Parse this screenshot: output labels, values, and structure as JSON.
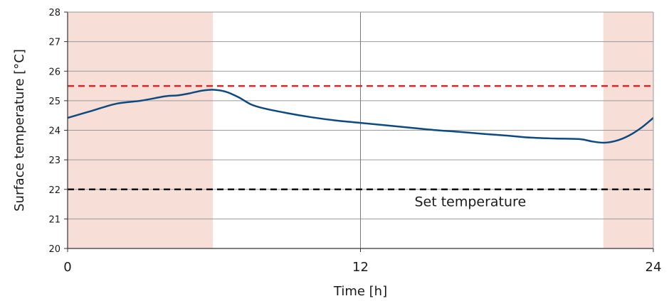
{
  "chart_data": {
    "type": "line",
    "xlabel": "Time [h]",
    "ylabel": "Surface temperature [°C]",
    "xlim": [
      0,
      24
    ],
    "ylim": [
      20,
      28
    ],
    "x_ticks": [
      0,
      12,
      24
    ],
    "y_ticks": [
      20,
      21,
      22,
      23,
      24,
      25,
      26,
      27,
      28
    ],
    "grid": "horizontal lines at every y tick, vertical line at x = 12",
    "shaded_ranges": [
      {
        "from": 0,
        "to": 5.95
      },
      {
        "from": 21.95,
        "to": 24
      }
    ],
    "reference_lines": [
      {
        "y": 25.5,
        "color": "#d62728",
        "style": "dashed"
      },
      {
        "y": 22,
        "color": "#111111",
        "style": "dashed"
      }
    ],
    "annotations": [
      {
        "text": "Set temperature",
        "x": 16.5,
        "y": 21.6
      }
    ],
    "series": [
      {
        "color": "#0d4a80",
        "x": [
          0,
          1,
          2,
          3,
          4,
          4.5,
          5,
          5.5,
          6,
          6.5,
          7,
          7.5,
          8,
          9,
          10,
          11,
          12,
          13,
          14,
          15,
          16,
          17,
          18,
          19,
          20,
          21,
          21.5,
          22,
          22.5,
          23,
          23.5,
          24
        ],
        "y": [
          24.42,
          24.66,
          24.9,
          25.0,
          25.15,
          25.18,
          25.25,
          25.34,
          25.37,
          25.3,
          25.12,
          24.88,
          24.75,
          24.58,
          24.44,
          24.33,
          24.25,
          24.17,
          24.09,
          24.01,
          23.95,
          23.88,
          23.82,
          23.75,
          23.72,
          23.7,
          23.62,
          23.58,
          23.65,
          23.82,
          24.08,
          24.42
        ]
      }
    ]
  }
}
